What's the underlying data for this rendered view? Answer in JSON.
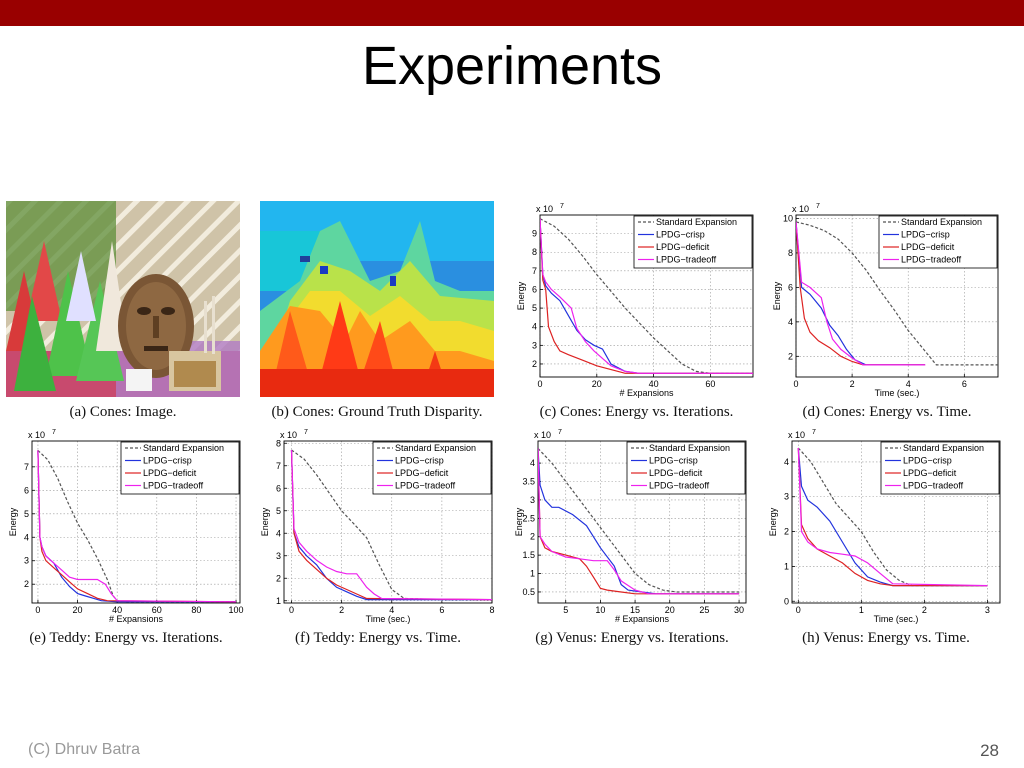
{
  "slide": {
    "title": "Experiments",
    "footer_left": "(C) Dhruv Batra",
    "page_number": "28",
    "accent_color": "#990000"
  },
  "images": [
    {
      "caption": "(a) Cones: Image."
    },
    {
      "caption": "(b) Cones: Ground Truth Disparity."
    }
  ],
  "chart_data": [
    {
      "type": "line",
      "caption": "(c) Cones: Energy vs. Iterations.",
      "xlabel": "# Expansions",
      "ylabel": "Energy",
      "multiplier": "x 10",
      "exponent": "7",
      "xlim": [
        0,
        75
      ],
      "ylim": [
        1.3,
        10
      ],
      "xticks": [
        0,
        20,
        40,
        60
      ],
      "yticks": [
        2,
        3,
        4,
        5,
        6,
        7,
        8,
        9
      ],
      "legend": "top-right",
      "series": [
        {
          "name": "Standard Expansion",
          "color": "#555555",
          "dash": true,
          "x": [
            0,
            5,
            10,
            15,
            20,
            25,
            30,
            35,
            40,
            45,
            50,
            55,
            60,
            75
          ],
          "y": [
            9.8,
            9.4,
            8.7,
            7.8,
            6.8,
            5.9,
            5.0,
            4.2,
            3.4,
            2.7,
            2.0,
            1.6,
            1.5,
            1.5
          ]
        },
        {
          "name": "LPDG−crisp",
          "color": "#2233dd",
          "dash": false,
          "x": [
            0,
            1,
            2,
            4,
            7,
            10,
            13,
            16,
            19,
            22,
            25,
            30,
            35,
            75
          ],
          "y": [
            9.8,
            6.8,
            6.2,
            5.8,
            5.4,
            4.6,
            3.8,
            3.3,
            3.0,
            2.8,
            2.0,
            1.6,
            1.5,
            1.5
          ]
        },
        {
          "name": "LPDG−deficit",
          "color": "#dd2222",
          "dash": false,
          "x": [
            0,
            1,
            2,
            3,
            5,
            7,
            10,
            15,
            20,
            25,
            30,
            75
          ],
          "y": [
            9.8,
            6.5,
            6.0,
            4.0,
            3.2,
            2.7,
            2.5,
            2.2,
            1.9,
            1.7,
            1.5,
            1.5
          ]
        },
        {
          "name": "LPDG−tradeoff",
          "color": "#ee22ee",
          "dash": false,
          "x": [
            0,
            1,
            2,
            4,
            7,
            11,
            13,
            16,
            19,
            22,
            25,
            30,
            35,
            75
          ],
          "y": [
            9.8,
            6.8,
            6.4,
            6.0,
            5.6,
            5.0,
            3.9,
            3.2,
            2.7,
            2.3,
            1.9,
            1.6,
            1.5,
            1.5
          ]
        }
      ]
    },
    {
      "type": "line",
      "caption": "(d) Cones: Energy vs. Time.",
      "xlabel": "Time (sec.)",
      "ylabel": "Energy",
      "multiplier": "x 10",
      "exponent": "7",
      "xlim": [
        0,
        7.2
      ],
      "ylim": [
        0.8,
        10.2
      ],
      "xticks": [
        0,
        2,
        4,
        6
      ],
      "yticks": [
        2,
        4,
        6,
        8,
        10
      ],
      "legend": "top-right",
      "series": [
        {
          "name": "Standard Expansion",
          "color": "#555555",
          "dash": true,
          "x": [
            0,
            0.5,
            1,
            1.5,
            2,
            2.5,
            3,
            3.5,
            4,
            4.5,
            5,
            6,
            7.2
          ],
          "y": [
            9.8,
            9.6,
            9.3,
            8.8,
            8.0,
            7.0,
            5.8,
            4.7,
            3.5,
            2.5,
            1.5,
            1.5,
            1.5
          ]
        },
        {
          "name": "LPDG−crisp",
          "color": "#2233dd",
          "dash": false,
          "x": [
            0,
            0.2,
            0.5,
            0.9,
            1.2,
            1.5,
            1.8,
            2.1,
            2.5,
            4.6
          ],
          "y": [
            9.8,
            6.0,
            5.6,
            4.8,
            3.8,
            3.2,
            2.4,
            1.8,
            1.5,
            1.5
          ]
        },
        {
          "name": "LPDG−deficit",
          "color": "#dd2222",
          "dash": false,
          "x": [
            0,
            0.15,
            0.3,
            0.5,
            0.8,
            1.2,
            1.6,
            2.0,
            2.4,
            4.6
          ],
          "y": [
            9.8,
            6.0,
            4.2,
            3.4,
            2.9,
            2.5,
            2.0,
            1.7,
            1.5,
            1.5
          ]
        },
        {
          "name": "LPDG−tradeoff",
          "color": "#ee22ee",
          "dash": false,
          "x": [
            0,
            0.2,
            0.5,
            0.9,
            1.1,
            1.3,
            1.6,
            2.0,
            2.4,
            4.6
          ],
          "y": [
            9.8,
            6.3,
            6.0,
            5.4,
            4.0,
            3.0,
            2.4,
            1.9,
            1.5,
            1.5
          ]
        }
      ]
    },
    {
      "type": "line",
      "caption": "(e) Teddy: Energy vs. Iterations.",
      "xlabel": "# Expansions",
      "ylabel": "Energy",
      "multiplier": "x 10",
      "exponent": "7",
      "xlim": [
        -3,
        102
      ],
      "ylim": [
        1.2,
        8.1
      ],
      "xticks": [
        0,
        20,
        40,
        60,
        80,
        100
      ],
      "yticks": [
        2,
        3,
        4,
        5,
        6,
        7
      ],
      "legend": "top-right",
      "series": [
        {
          "name": "Standard Expansion",
          "color": "#555555",
          "dash": true,
          "x": [
            0,
            5,
            10,
            15,
            20,
            25,
            30,
            35,
            38,
            40,
            45,
            100
          ],
          "y": [
            7.7,
            7.3,
            6.5,
            5.5,
            4.6,
            3.9,
            3.1,
            2.2,
            1.5,
            1.3,
            1.25,
            1.25
          ]
        },
        {
          "name": "LPDG−crisp",
          "color": "#2233dd",
          "dash": false,
          "x": [
            0,
            1,
            2,
            4,
            8,
            12,
            16,
            20,
            24,
            28,
            32,
            40,
            100
          ],
          "y": [
            7.7,
            4.0,
            3.6,
            3.2,
            2.9,
            2.3,
            1.9,
            1.6,
            1.5,
            1.4,
            1.3,
            1.25,
            1.25
          ]
        },
        {
          "name": "LPDG−deficit",
          "color": "#dd2222",
          "dash": false,
          "x": [
            0,
            1,
            2,
            4,
            8,
            12,
            16,
            20,
            25,
            30,
            35,
            100
          ],
          "y": [
            7.7,
            4.0,
            3.4,
            3.0,
            2.7,
            2.4,
            2.1,
            1.8,
            1.6,
            1.4,
            1.3,
            1.25
          ]
        },
        {
          "name": "LPDG−tradeoff",
          "color": "#ee22ee",
          "dash": false,
          "x": [
            0,
            1,
            2,
            4,
            8,
            12,
            16,
            20,
            30,
            34,
            37,
            40,
            100
          ],
          "y": [
            7.7,
            4.0,
            3.6,
            3.2,
            2.9,
            2.6,
            2.3,
            2.2,
            2.2,
            2.0,
            1.6,
            1.3,
            1.25
          ]
        }
      ]
    },
    {
      "type": "line",
      "caption": "(f) Teddy: Energy vs. Time.",
      "xlabel": "Time (sec.)",
      "ylabel": "Energy",
      "multiplier": "x 10",
      "exponent": "7",
      "xlim": [
        -0.3,
        8
      ],
      "ylim": [
        0.9,
        8.1
      ],
      "xticks": [
        0,
        2,
        4,
        6,
        8
      ],
      "yticks": [
        1,
        2,
        3,
        4,
        5,
        6,
        7,
        8
      ],
      "legend": "top-right",
      "series": [
        {
          "name": "Standard Expansion",
          "color": "#555555",
          "dash": true,
          "x": [
            0,
            0.5,
            1,
            1.5,
            2,
            2.5,
            3,
            3.5,
            4,
            4.5,
            6,
            8
          ],
          "y": [
            7.7,
            7.3,
            6.6,
            5.8,
            5.0,
            4.4,
            3.8,
            2.6,
            1.5,
            1.1,
            1.05,
            1.05
          ]
        },
        {
          "name": "LPDG−crisp",
          "color": "#2233dd",
          "dash": false,
          "x": [
            0,
            0.1,
            0.3,
            0.6,
            1.0,
            1.4,
            1.8,
            2.2,
            2.6,
            3.0,
            8
          ],
          "y": [
            7.7,
            4.0,
            3.4,
            3.0,
            2.6,
            2.0,
            1.6,
            1.4,
            1.2,
            1.05,
            1.05
          ]
        },
        {
          "name": "LPDG−deficit",
          "color": "#dd2222",
          "dash": false,
          "x": [
            0,
            0.1,
            0.3,
            0.6,
            1.0,
            1.4,
            1.8,
            2.2,
            2.6,
            3.0,
            8
          ],
          "y": [
            7.7,
            4.0,
            3.2,
            2.8,
            2.4,
            2.0,
            1.7,
            1.5,
            1.3,
            1.1,
            1.05
          ]
        },
        {
          "name": "LPDG−tradeoff",
          "color": "#ee22ee",
          "dash": false,
          "x": [
            0,
            0.1,
            0.3,
            0.6,
            1.0,
            1.4,
            1.8,
            2.2,
            2.6,
            3.0,
            3.3,
            3.6,
            8
          ],
          "y": [
            7.7,
            4.2,
            3.6,
            3.2,
            2.8,
            2.5,
            2.3,
            2.2,
            2.2,
            1.6,
            1.3,
            1.1,
            1.05
          ]
        }
      ]
    },
    {
      "type": "line",
      "caption": "(g) Venus: Energy vs. Iterations.",
      "xlabel": "# Expansions",
      "ylabel": "Energy",
      "multiplier": "x 10",
      "exponent": "7",
      "xlim": [
        1,
        31
      ],
      "ylim": [
        0.2,
        4.6
      ],
      "xticks": [
        5,
        10,
        15,
        20,
        25,
        30
      ],
      "yticks": [
        0.5,
        1,
        1.5,
        2,
        2.5,
        3,
        3.5,
        4
      ],
      "legend": "top-right",
      "series": [
        {
          "name": "Standard Expansion",
          "color": "#555555",
          "dash": true,
          "x": [
            1,
            3,
            5,
            7,
            9,
            11,
            13,
            15,
            17,
            19,
            21,
            30
          ],
          "y": [
            4.4,
            4.0,
            3.5,
            3.0,
            2.5,
            2.0,
            1.5,
            1.0,
            0.7,
            0.55,
            0.5,
            0.5
          ]
        },
        {
          "name": "LPDG−crisp",
          "color": "#2233dd",
          "dash": false,
          "x": [
            1,
            1.3,
            2,
            3,
            4,
            6,
            8,
            10,
            12,
            13,
            14,
            16,
            18,
            30
          ],
          "y": [
            4.4,
            3.4,
            3.0,
            2.8,
            2.8,
            2.6,
            2.3,
            1.7,
            1.2,
            0.7,
            0.55,
            0.5,
            0.45,
            0.45
          ]
        },
        {
          "name": "LPDG−deficit",
          "color": "#dd2222",
          "dash": false,
          "x": [
            1,
            1.3,
            2,
            3,
            5,
            7,
            8,
            9,
            10,
            11,
            13,
            15,
            30
          ],
          "y": [
            4.4,
            2.0,
            1.7,
            1.6,
            1.5,
            1.4,
            1.2,
            0.9,
            0.6,
            0.55,
            0.5,
            0.45,
            0.45
          ]
        },
        {
          "name": "LPDG−tradeoff",
          "color": "#ee22ee",
          "dash": false,
          "x": [
            1,
            1.3,
            2,
            3,
            5,
            7,
            9,
            11,
            12,
            13,
            15,
            17,
            30
          ],
          "y": [
            4.4,
            2.0,
            1.8,
            1.6,
            1.45,
            1.4,
            1.35,
            1.35,
            1.1,
            0.8,
            0.55,
            0.45,
            0.45
          ]
        }
      ]
    },
    {
      "type": "line",
      "caption": "(h) Venus: Energy vs. Time.",
      "xlabel": "Time (sec.)",
      "ylabel": "Energy",
      "multiplier": "x 10",
      "exponent": "7",
      "xlim": [
        -0.1,
        3.2
      ],
      "ylim": [
        -0.05,
        4.6
      ],
      "xticks": [
        0,
        1,
        2,
        3
      ],
      "yticks": [
        0,
        1,
        2,
        3,
        4
      ],
      "legend": "top-right",
      "series": [
        {
          "name": "Standard Expansion",
          "color": "#555555",
          "dash": true,
          "x": [
            0,
            0.2,
            0.4,
            0.6,
            0.8,
            1.0,
            1.2,
            1.4,
            1.6,
            1.8,
            3.0
          ],
          "y": [
            4.4,
            4.0,
            3.4,
            2.8,
            2.4,
            2.0,
            1.4,
            0.9,
            0.6,
            0.45,
            0.45
          ]
        },
        {
          "name": "LPDG−crisp",
          "color": "#2233dd",
          "dash": false,
          "x": [
            0,
            0.05,
            0.15,
            0.3,
            0.5,
            0.7,
            0.9,
            1.1,
            1.3,
            1.5,
            3.0
          ],
          "y": [
            4.4,
            3.3,
            2.9,
            2.7,
            2.3,
            1.7,
            1.1,
            0.7,
            0.55,
            0.45,
            0.45
          ]
        },
        {
          "name": "LPDG−deficit",
          "color": "#dd2222",
          "dash": false,
          "x": [
            0,
            0.05,
            0.15,
            0.3,
            0.5,
            0.7,
            0.9,
            1.1,
            1.3,
            1.5,
            3.0
          ],
          "y": [
            4.4,
            2.2,
            1.8,
            1.5,
            1.3,
            1.1,
            0.8,
            0.6,
            0.5,
            0.45,
            0.45
          ]
        },
        {
          "name": "LPDG−tradeoff",
          "color": "#ee22ee",
          "dash": false,
          "x": [
            0,
            0.05,
            0.15,
            0.3,
            0.5,
            0.7,
            0.9,
            1.1,
            1.3,
            1.5,
            3.0
          ],
          "y": [
            4.4,
            2.0,
            1.7,
            1.5,
            1.4,
            1.35,
            1.3,
            1.1,
            0.8,
            0.5,
            0.45
          ]
        }
      ]
    }
  ]
}
